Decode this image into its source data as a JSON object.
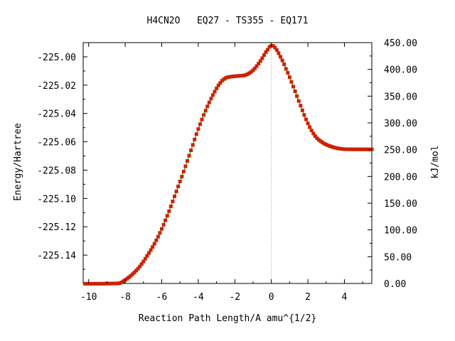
{
  "chart_data": {
    "type": "line",
    "title": "H4CN2O   EQ27 - TS355 - EQ171",
    "xlabel": "Reaction Path Length/A amu^{1/2}",
    "ylabel": "Energy/Hartree",
    "y2label": "kJ/mol",
    "xlim": [
      -10.3,
      5.5
    ],
    "ylim": [
      -225.16,
      -224.99
    ],
    "y2lim": [
      0,
      450
    ],
    "xticks": [
      {
        "value": -10,
        "label": "-10"
      },
      {
        "value": -8,
        "label": "-8"
      },
      {
        "value": -6,
        "label": "-6"
      },
      {
        "value": -4,
        "label": "-4"
      },
      {
        "value": -2,
        "label": "-2"
      },
      {
        "value": 0,
        "label": "0"
      },
      {
        "value": 2,
        "label": "2"
      },
      {
        "value": 4,
        "label": "4"
      }
    ],
    "yticks": [
      {
        "value": -225.0,
        "label": "-225.00"
      },
      {
        "value": -225.02,
        "label": "-225.02"
      },
      {
        "value": -225.04,
        "label": "-225.04"
      },
      {
        "value": -225.06,
        "label": "-225.06"
      },
      {
        "value": -225.08,
        "label": "-225.08"
      },
      {
        "value": -225.1,
        "label": "-225.10"
      },
      {
        "value": -225.12,
        "label": "-225.12"
      },
      {
        "value": -225.14,
        "label": "-225.14"
      }
    ],
    "y2ticks": [
      {
        "value": 0,
        "label": "0.00"
      },
      {
        "value": 50,
        "label": "50.00"
      },
      {
        "value": 100,
        "label": "100.00"
      },
      {
        "value": 150,
        "label": "150.00"
      },
      {
        "value": 200,
        "label": "200.00"
      },
      {
        "value": 250,
        "label": "250.00"
      },
      {
        "value": 300,
        "label": "300.00"
      },
      {
        "value": 350,
        "label": "350.00"
      },
      {
        "value": 400,
        "label": "400.00"
      },
      {
        "value": 450,
        "label": "450.00"
      }
    ],
    "ts_marker_x": 0,
    "colors": {
      "line": "#2e8b00",
      "marker": "#cc2200",
      "axis": "#000000",
      "ts_line": "#999999"
    },
    "points": [
      [
        -10.2,
        -225.1602
      ],
      [
        -9.8,
        -225.1602
      ],
      [
        -9.4,
        -225.1602
      ],
      [
        -9.0,
        -225.1601
      ],
      [
        -8.6,
        -225.16
      ],
      [
        -8.3,
        -225.1598
      ],
      [
        -8.0,
        -225.1575
      ],
      [
        -7.6,
        -225.1535
      ],
      [
        -7.2,
        -225.148
      ],
      [
        -6.8,
        -225.1405
      ],
      [
        -6.4,
        -225.132
      ],
      [
        -6.0,
        -225.1215
      ],
      [
        -5.6,
        -225.109
      ],
      [
        -5.2,
        -225.095
      ],
      [
        -4.8,
        -225.081
      ],
      [
        -4.4,
        -225.066
      ],
      [
        -4.0,
        -225.051
      ],
      [
        -3.6,
        -225.038
      ],
      [
        -3.2,
        -225.027
      ],
      [
        -2.8,
        -225.0185
      ],
      [
        -2.5,
        -225.015
      ],
      [
        -2.2,
        -225.014
      ],
      [
        -1.8,
        -225.0135
      ],
      [
        -1.4,
        -225.0128
      ],
      [
        -1.0,
        -225.0095
      ],
      [
        -0.6,
        -225.003
      ],
      [
        -0.2,
        -224.995
      ],
      [
        0.0,
        -224.9922
      ],
      [
        0.2,
        -224.9935
      ],
      [
        0.5,
        -225.0
      ],
      [
        0.8,
        -225.0085
      ],
      [
        1.2,
        -225.021
      ],
      [
        1.6,
        -225.0345
      ],
      [
        2.0,
        -225.047
      ],
      [
        2.4,
        -225.056
      ],
      [
        2.8,
        -225.0605
      ],
      [
        3.2,
        -225.063
      ],
      [
        3.6,
        -225.0645
      ],
      [
        4.0,
        -225.0652
      ],
      [
        4.5,
        -225.0653
      ],
      [
        5.0,
        -225.0653
      ],
      [
        5.5,
        -225.0653
      ]
    ]
  }
}
